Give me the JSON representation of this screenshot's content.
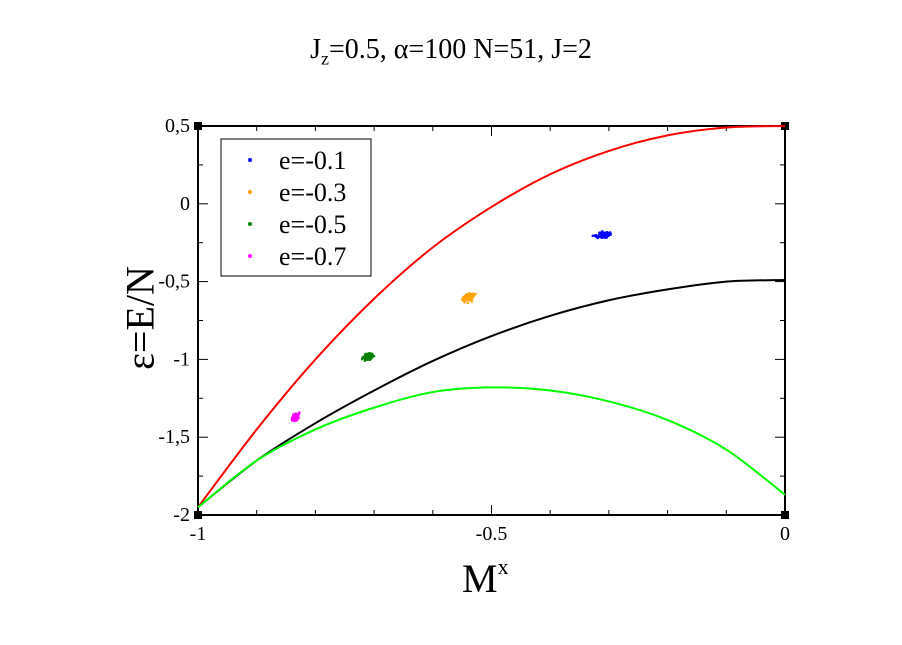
{
  "title": {
    "jz_main": "J",
    "jz_sub": "z",
    "rest": "=0.5, α=100  N=51, J=2"
  },
  "axes": {
    "xlabel_main": "M",
    "xlabel_sup": "x",
    "ylabel": "ε=E/N"
  },
  "chart_data": {
    "type": "scatter",
    "title": "Jz=0.5, α=100  N=51, J=2",
    "xlabel": "Mx",
    "ylabel": "ε=E/N",
    "xlim": [
      -1,
      0
    ],
    "ylim": [
      -2,
      0.5
    ],
    "x_ticks": [
      -1,
      -0.5,
      0
    ],
    "x_tick_labels": [
      "-1",
      "-0.5",
      "0"
    ],
    "y_ticks": [
      0.5,
      0,
      -0.5,
      -1,
      -1.5,
      -2
    ],
    "y_tick_labels": [
      "0,5",
      "0",
      "-0,5",
      "-1",
      "-1,5",
      "-2"
    ],
    "grid": false,
    "legend_position": "top-left",
    "series": [
      {
        "name": "e=-0.1",
        "color": "#0000ff",
        "center": [
          -0.31,
          -0.2
        ],
        "spread": [
          0.015,
          0.03
        ]
      },
      {
        "name": "e=-0.3",
        "color": "#ffa500",
        "center": [
          -0.54,
          -0.6
        ],
        "spread": [
          0.012,
          0.04
        ]
      },
      {
        "name": "e=-0.5",
        "color": "#008000",
        "center": [
          -0.71,
          -0.98
        ],
        "spread": [
          0.01,
          0.035
        ]
      },
      {
        "name": "e=-0.7",
        "color": "#ff00ff",
        "center": [
          -0.835,
          -1.37
        ],
        "spread": [
          0.008,
          0.04
        ]
      }
    ],
    "curves": [
      {
        "color": "#ff0000",
        "x": [
          -1,
          -0.9,
          -0.8,
          -0.7,
          -0.6,
          -0.5,
          -0.4,
          -0.3,
          -0.2,
          -0.1,
          0
        ],
        "y": [
          -1.95,
          -1.45,
          -1.0,
          -0.61,
          -0.28,
          -0.02,
          0.19,
          0.34,
          0.44,
          0.49,
          0.5
        ]
      },
      {
        "color": "#000000",
        "x": [
          -1,
          -0.9,
          -0.8,
          -0.7,
          -0.6,
          -0.5,
          -0.4,
          -0.3,
          -0.2,
          -0.1,
          0
        ],
        "y": [
          -1.95,
          -1.65,
          -1.41,
          -1.2,
          -1.01,
          -0.85,
          -0.72,
          -0.62,
          -0.55,
          -0.5,
          -0.49
        ]
      },
      {
        "color": "#00ff00",
        "x": [
          -1,
          -0.9,
          -0.8,
          -0.7,
          -0.6,
          -0.5,
          -0.4,
          -0.3,
          -0.2,
          -0.1,
          0
        ],
        "y": [
          -1.95,
          -1.65,
          -1.45,
          -1.31,
          -1.21,
          -1.18,
          -1.2,
          -1.27,
          -1.39,
          -1.58,
          -1.87
        ]
      }
    ]
  }
}
